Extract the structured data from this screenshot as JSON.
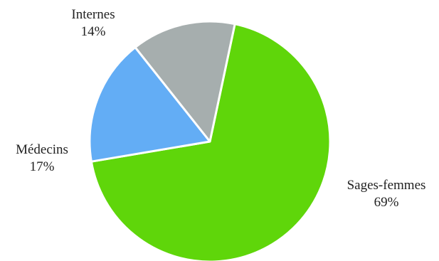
{
  "chart_data": {
    "type": "pie",
    "title": "",
    "legend": "none",
    "slices": [
      {
        "label": "Sages-femmes",
        "value": 69,
        "percent_label": "69%",
        "color": "#5fd60a"
      },
      {
        "label": "Médecins",
        "value": 17,
        "percent_label": "17%",
        "color": "#63adf5"
      },
      {
        "label": "Internes",
        "value": 14,
        "percent_label": "14%",
        "color": "#a6aeae"
      }
    ]
  }
}
